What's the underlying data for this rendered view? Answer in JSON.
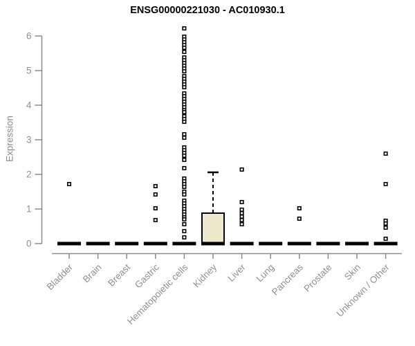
{
  "chart_data": {
    "type": "boxplot",
    "title": "ENSG00000221030 - AC010930.1",
    "xlabel": "",
    "ylabel": "Expression",
    "ylim": [
      0,
      6.3
    ],
    "yticks": [
      0,
      1,
      2,
      3,
      4,
      5,
      6
    ],
    "grid": "off",
    "legend": "none",
    "categories": [
      "Bladder",
      "Brain",
      "Breast",
      "Gastric",
      "Hematopoietic cells",
      "Kidney",
      "Liver",
      "Lung",
      "Pancreas",
      "Prostate",
      "Skin",
      "Unknown / Other"
    ],
    "series": [
      {
        "category": "Bladder",
        "q1": 0,
        "median": 0,
        "q3": 0,
        "whisker_low": 0,
        "whisker_high": 0,
        "outliers": [
          1.72
        ]
      },
      {
        "category": "Brain",
        "q1": 0,
        "median": 0,
        "q3": 0,
        "whisker_low": 0,
        "whisker_high": 0,
        "outliers": []
      },
      {
        "category": "Breast",
        "q1": 0,
        "median": 0,
        "q3": 0,
        "whisker_low": 0,
        "whisker_high": 0,
        "outliers": []
      },
      {
        "category": "Gastric",
        "q1": 0,
        "median": 0,
        "q3": 0,
        "whisker_low": 0,
        "whisker_high": 0,
        "outliers": [
          1.66,
          1.42,
          1.02,
          0.68
        ]
      },
      {
        "category": "Hematopoietic cells",
        "q1": 0,
        "median": 0,
        "q3": 0,
        "whisker_low": 0,
        "whisker_high": 0,
        "outliers": [
          6.22,
          5.98,
          5.9,
          5.82,
          5.74,
          5.66,
          5.54,
          5.38,
          5.3,
          5.22,
          5.14,
          5.06,
          4.98,
          4.84,
          4.76,
          4.68,
          4.6,
          4.52,
          4.34,
          4.26,
          4.18,
          4.1,
          4.02,
          3.94,
          3.86,
          3.8,
          3.68,
          3.6,
          3.52,
          3.16,
          3.06,
          2.78,
          2.7,
          2.62,
          2.54,
          2.42,
          2.18,
          1.88,
          1.8,
          1.72,
          1.64,
          1.5,
          1.42,
          1.24,
          1.16,
          1.08,
          1.0,
          0.92,
          0.84,
          0.76,
          0.7,
          0.56,
          0.36,
          0.18
        ]
      },
      {
        "category": "Kidney",
        "q1": 0,
        "median": 0,
        "q3": 0.88,
        "whisker_low": 0,
        "whisker_high": 2.06,
        "outliers": []
      },
      {
        "category": "Liver",
        "q1": 0,
        "median": 0,
        "q3": 0,
        "whisker_low": 0,
        "whisker_high": 0,
        "outliers": [
          2.14,
          1.2,
          0.98,
          0.88,
          0.78,
          0.68,
          0.56
        ]
      },
      {
        "category": "Lung",
        "q1": 0,
        "median": 0,
        "q3": 0,
        "whisker_low": 0,
        "whisker_high": 0,
        "outliers": []
      },
      {
        "category": "Pancreas",
        "q1": 0,
        "median": 0,
        "q3": 0,
        "whisker_low": 0,
        "whisker_high": 0,
        "outliers": [
          1.02,
          0.72
        ]
      },
      {
        "category": "Prostate",
        "q1": 0,
        "median": 0,
        "q3": 0,
        "whisker_low": 0,
        "whisker_high": 0,
        "outliers": []
      },
      {
        "category": "Skin",
        "q1": 0,
        "median": 0,
        "q3": 0,
        "whisker_low": 0,
        "whisker_high": 0,
        "outliers": []
      },
      {
        "category": "Unknown / Other",
        "q1": 0,
        "median": 0,
        "q3": 0,
        "whisker_low": 0,
        "whisker_high": 0,
        "outliers": [
          2.6,
          1.72,
          0.66,
          0.58,
          0.46,
          0.14
        ]
      }
    ],
    "colors": {
      "box_fill": "#eee8cd",
      "box_border": "#000000",
      "median": "#000000",
      "whisker": "#000000",
      "outlier_stroke": "#000000",
      "outlier_fill": "#ffffff",
      "axis_line": "#8a8a8a",
      "tick_label": "#909090",
      "title": "#000000",
      "background": "#ffffff"
    }
  }
}
